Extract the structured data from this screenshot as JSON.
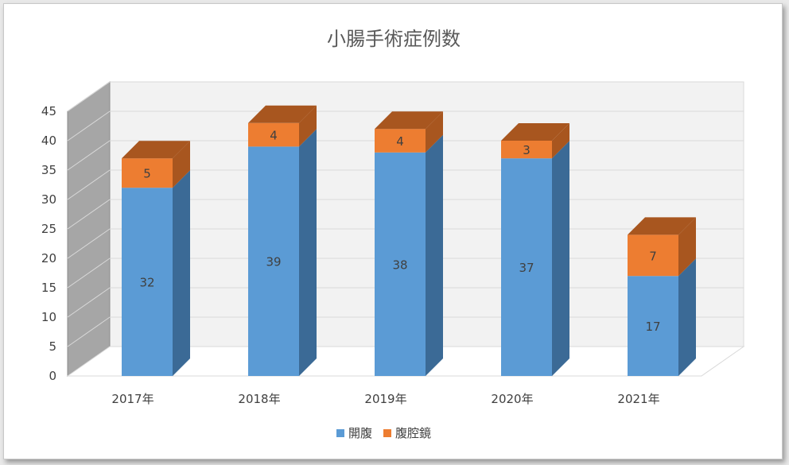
{
  "chart_data": {
    "type": "bar",
    "stacked": true,
    "view": "3d",
    "title": "小腸手術症例数",
    "categories": [
      "2017年",
      "2018年",
      "2019年",
      "2020年",
      "2021年"
    ],
    "series": [
      {
        "name": "開腹",
        "values": [
          32,
          39,
          38,
          37,
          17
        ],
        "color": "#5b9bd5",
        "side_color": "#3b6a96"
      },
      {
        "name": "腹腔鏡",
        "values": [
          5,
          4,
          4,
          3,
          7
        ],
        "color": "#ed7d31",
        "side_color": "#a8561f"
      }
    ],
    "ylim": [
      0,
      45
    ],
    "yticks": [
      "0",
      "5",
      "10",
      "15",
      "20",
      "25",
      "30",
      "35",
      "40",
      "45"
    ],
    "grid": true,
    "legend_position": "bottom"
  }
}
